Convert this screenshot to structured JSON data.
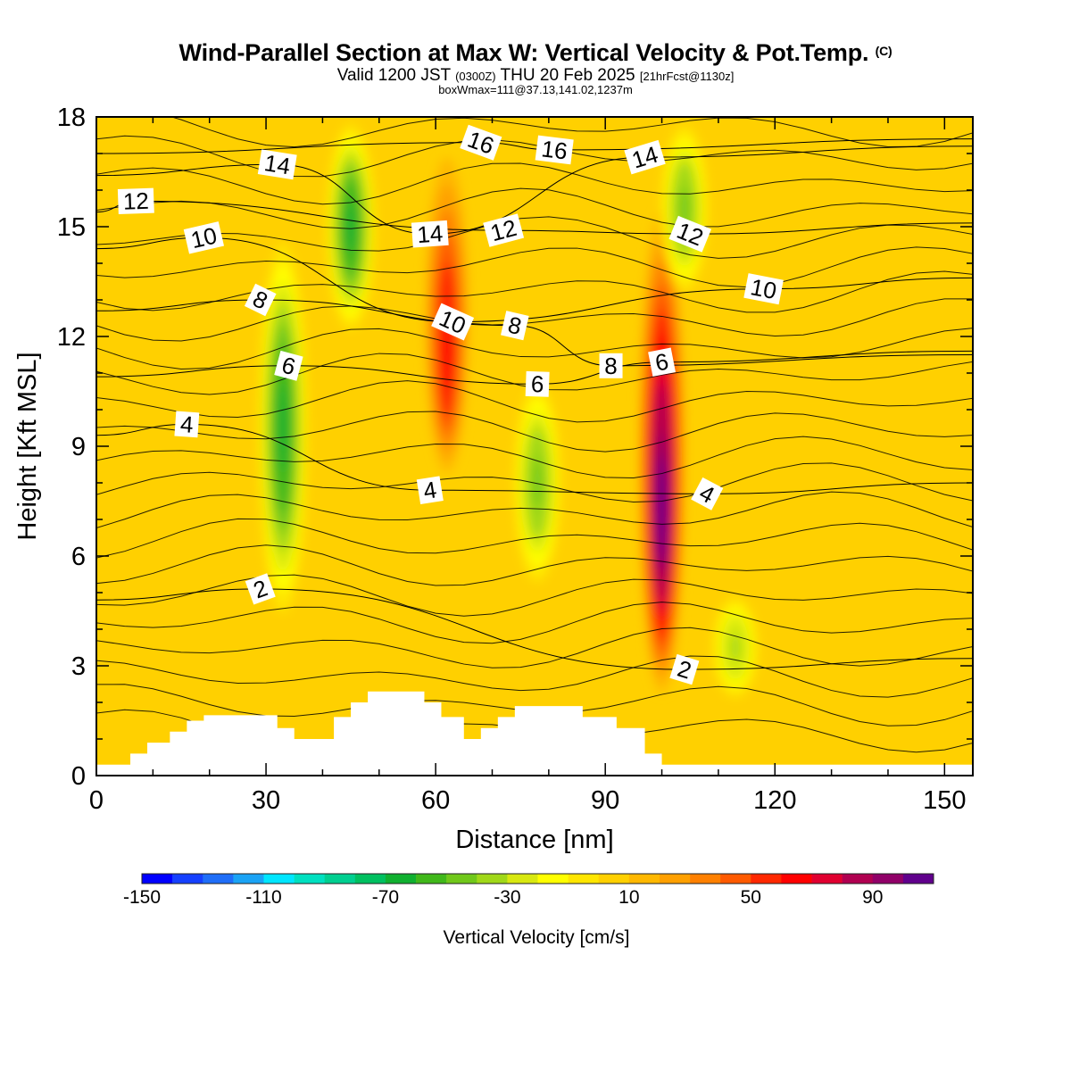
{
  "title": "Wind-Parallel Section at Max W: Vertical Velocity & Pot.Temp.",
  "title_mark": "(C)",
  "subtitle": {
    "prefix": "Valid 1200 JST",
    "utc": "(0300Z)",
    "date": "THU 20 Feb 2025",
    "forecast": "[21hrFcst@1130z]"
  },
  "subtitle2": "boxWmax=111@37.13,141.02,1237m",
  "chart_data": {
    "type": "heatmap",
    "xlabel": "Distance [nm]",
    "ylabel": "Height [Kft MSL]",
    "xlim": [
      0,
      155
    ],
    "ylim": [
      0,
      18
    ],
    "xticks": [
      0,
      30,
      60,
      90,
      120,
      150
    ],
    "yticks": [
      0,
      3,
      6,
      9,
      12,
      15,
      18
    ],
    "grid": false,
    "background_value_cms": 5,
    "colorbar": {
      "label": "Vertical Velocity [cm/s]",
      "min": -150,
      "max": 110,
      "step": 10,
      "tick_labels": [
        -150,
        -110,
        -70,
        -30,
        10,
        50,
        90
      ],
      "colors": [
        "#0000ff",
        "#1540ff",
        "#1f6ef8",
        "#1aa3f5",
        "#00e6ff",
        "#00e0c0",
        "#00cf90",
        "#00c060",
        "#10b030",
        "#40b81a",
        "#70c81a",
        "#a0d818",
        "#d8e810",
        "#ffff00",
        "#ffe600",
        "#ffd000",
        "#ffb800",
        "#ffa000",
        "#ff8000",
        "#ff5a00",
        "#ff2800",
        "#ff0000",
        "#e00030",
        "#b00050",
        "#900068",
        "#60008c"
      ]
    },
    "velocity_features": [
      {
        "kind": "updraft",
        "x": 62,
        "top_kft": 17.5,
        "bottom_kft": 8,
        "peak_cms": 70
      },
      {
        "kind": "updraft",
        "x": 100,
        "top_kft": 16,
        "bottom_kft": 2,
        "peak_cms": 110
      },
      {
        "kind": "downdraft",
        "x": 33,
        "top_kft": 15,
        "bottom_kft": 4,
        "peak_cms": -70
      },
      {
        "kind": "downdraft",
        "x": 45,
        "top_kft": 18,
        "bottom_kft": 12,
        "peak_cms": -70
      },
      {
        "kind": "downdraft",
        "x": 78,
        "top_kft": 11,
        "bottom_kft": 5,
        "peak_cms": -50
      },
      {
        "kind": "downdraft",
        "x": 104,
        "top_kft": 18,
        "bottom_kft": 13,
        "peak_cms": -50
      },
      {
        "kind": "downdraft",
        "x": 113,
        "top_kft": 5,
        "bottom_kft": 2,
        "peak_cms": -40
      }
    ],
    "terrain": [
      [
        0,
        0.3
      ],
      [
        6,
        0.3
      ],
      [
        6,
        0.6
      ],
      [
        9,
        0.6
      ],
      [
        9,
        0.9
      ],
      [
        13,
        0.9
      ],
      [
        13,
        1.2
      ],
      [
        16,
        1.2
      ],
      [
        16,
        1.5
      ],
      [
        19,
        1.5
      ],
      [
        19,
        1.65
      ],
      [
        32,
        1.65
      ],
      [
        32,
        1.3
      ],
      [
        35,
        1.3
      ],
      [
        35,
        1.0
      ],
      [
        42,
        1.0
      ],
      [
        42,
        1.6
      ],
      [
        45,
        1.6
      ],
      [
        45,
        2.0
      ],
      [
        48,
        2.0
      ],
      [
        48,
        2.3
      ],
      [
        58,
        2.3
      ],
      [
        58,
        2.0
      ],
      [
        61,
        2.0
      ],
      [
        61,
        1.6
      ],
      [
        65,
        1.6
      ],
      [
        65,
        1.0
      ],
      [
        68,
        1.0
      ],
      [
        68,
        1.3
      ],
      [
        71,
        1.3
      ],
      [
        71,
        1.6
      ],
      [
        74,
        1.6
      ],
      [
        74,
        1.9
      ],
      [
        86,
        1.9
      ],
      [
        86,
        1.6
      ],
      [
        92,
        1.6
      ],
      [
        92,
        1.3
      ],
      [
        97,
        1.3
      ],
      [
        97,
        0.6
      ],
      [
        100,
        0.6
      ],
      [
        100,
        0.3
      ],
      [
        155,
        0.3
      ]
    ],
    "theta_contour_labels": [
      {
        "value": "2",
        "x": 29,
        "y": 5.1
      },
      {
        "value": "2",
        "x": 104,
        "y": 2.9
      },
      {
        "value": "4",
        "x": 16,
        "y": 9.6
      },
      {
        "value": "4",
        "x": 59,
        "y": 7.8
      },
      {
        "value": "4",
        "x": 108,
        "y": 7.7
      },
      {
        "value": "6",
        "x": 34,
        "y": 11.2
      },
      {
        "value": "6",
        "x": 78,
        "y": 10.7
      },
      {
        "value": "6",
        "x": 100,
        "y": 11.3
      },
      {
        "value": "8",
        "x": 29,
        "y": 13.0
      },
      {
        "value": "8",
        "x": 74,
        "y": 12.3
      },
      {
        "value": "8",
        "x": 91,
        "y": 11.2
      },
      {
        "value": "10",
        "x": 19,
        "y": 14.7
      },
      {
        "value": "10",
        "x": 63,
        "y": 12.4
      },
      {
        "value": "10",
        "x": 118,
        "y": 13.3
      },
      {
        "value": "12",
        "x": 7,
        "y": 15.7
      },
      {
        "value": "12",
        "x": 72,
        "y": 14.9
      },
      {
        "value": "12",
        "x": 105,
        "y": 14.8
      },
      {
        "value": "14",
        "x": 32,
        "y": 16.7
      },
      {
        "value": "14",
        "x": 59,
        "y": 14.8
      },
      {
        "value": "14",
        "x": 97,
        "y": 16.9
      },
      {
        "value": "16",
        "x": 68,
        "y": 17.3
      },
      {
        "value": "16",
        "x": 81,
        "y": 17.1
      }
    ]
  }
}
